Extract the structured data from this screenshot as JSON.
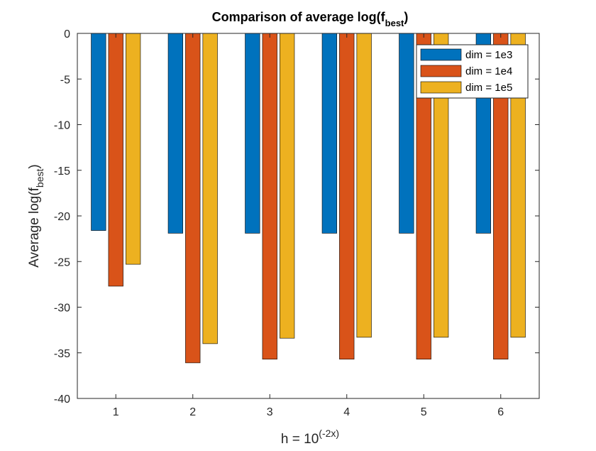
{
  "chart_data": {
    "type": "bar",
    "title": {
      "prefix": "Comparison of average log(f",
      "subscript": "best",
      "suffix": ")"
    },
    "xlabel": {
      "prefix": "h = 10",
      "superscript": "(-2x)"
    },
    "ylabel": {
      "prefix": "Average log(f",
      "subscript": "best",
      "suffix": ")"
    },
    "categories": [
      "1",
      "2",
      "3",
      "4",
      "5",
      "6"
    ],
    "xlim": [
      0.5,
      6.5
    ],
    "ylim": [
      -40,
      0
    ],
    "yticks": [
      0,
      -5,
      -10,
      -15,
      -20,
      -25,
      -30,
      -35,
      -40
    ],
    "grid": false,
    "legend_position": "top-right",
    "series": [
      {
        "name": "dim = 1e3",
        "color": "#0072BD",
        "values": [
          -21.6,
          -21.9,
          -21.9,
          -21.9,
          -21.9,
          -21.9
        ]
      },
      {
        "name": "dim = 1e4",
        "color": "#D95319",
        "values": [
          -27.7,
          -36.1,
          -35.7,
          -35.7,
          -35.7,
          -35.7
        ]
      },
      {
        "name": "dim = 1e5",
        "color": "#EDB120",
        "values": [
          -25.3,
          -34.0,
          -33.4,
          -33.3,
          -33.3,
          -33.3
        ]
      }
    ]
  }
}
